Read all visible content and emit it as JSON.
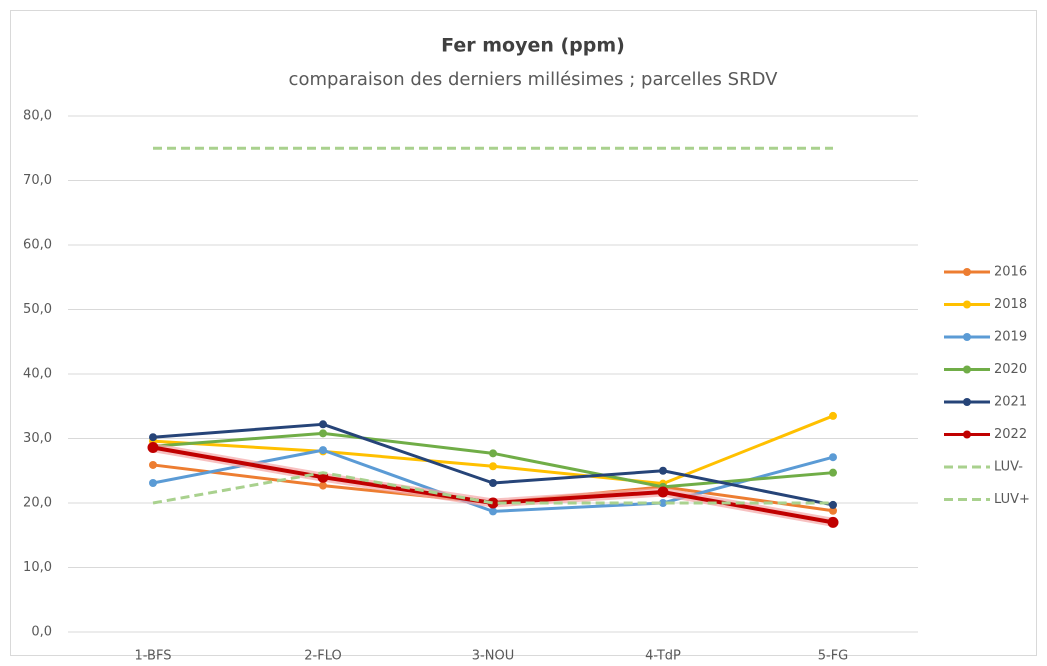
{
  "chart_data": {
    "type": "line",
    "title": "Fer moyen (ppm)",
    "subtitle": "comparaison des derniers millésimes ; parcelles SRDV",
    "categories": [
      "1-BFS",
      "2-FLO",
      "3-NOU",
      "4-TdP",
      "5-FG"
    ],
    "series": [
      {
        "name": "2016",
        "color": "#ed7d31",
        "values": [
          25.9,
          22.7,
          20.0,
          22.5,
          18.8
        ]
      },
      {
        "name": "2018",
        "color": "#ffc000",
        "values": [
          29.6,
          28.0,
          25.7,
          23.0,
          33.5
        ]
      },
      {
        "name": "2019",
        "color": "#5b9bd5",
        "values": [
          23.1,
          28.2,
          18.7,
          20.0,
          27.1
        ]
      },
      {
        "name": "2020",
        "color": "#70ad47",
        "values": [
          28.8,
          30.8,
          27.7,
          22.5,
          24.7
        ]
      },
      {
        "name": "2021",
        "color": "#264478",
        "values": [
          30.2,
          32.2,
          23.1,
          25.0,
          19.7
        ]
      },
      {
        "name": "2022",
        "color": "#c00000",
        "values": [
          28.6,
          24.0,
          20.0,
          21.7,
          17.0
        ]
      },
      {
        "name": "LUV-",
        "color": "#a9d18e",
        "line_style": "dashed",
        "values": [
          20.0,
          24.7,
          20.0,
          20.0,
          20.0
        ]
      },
      {
        "name": "LUV+",
        "color": "#a9d18e",
        "line_style": "dashed",
        "values": [
          75.0,
          75.0,
          75.0,
          75.0,
          75.0
        ]
      }
    ],
    "ylim": [
      0,
      80
    ],
    "yticks": [
      {
        "value": 0,
        "label": "0,0"
      },
      {
        "value": 10,
        "label": "10,0"
      },
      {
        "value": 20,
        "label": "20,0"
      },
      {
        "value": 30,
        "label": "30,0"
      },
      {
        "value": 40,
        "label": "40,0"
      },
      {
        "value": 50,
        "label": "50,0"
      },
      {
        "value": 60,
        "label": "60,0"
      },
      {
        "value": 70,
        "label": "70,0"
      },
      {
        "value": 80,
        "label": "80,0"
      }
    ],
    "grid": true,
    "legend": "right"
  }
}
